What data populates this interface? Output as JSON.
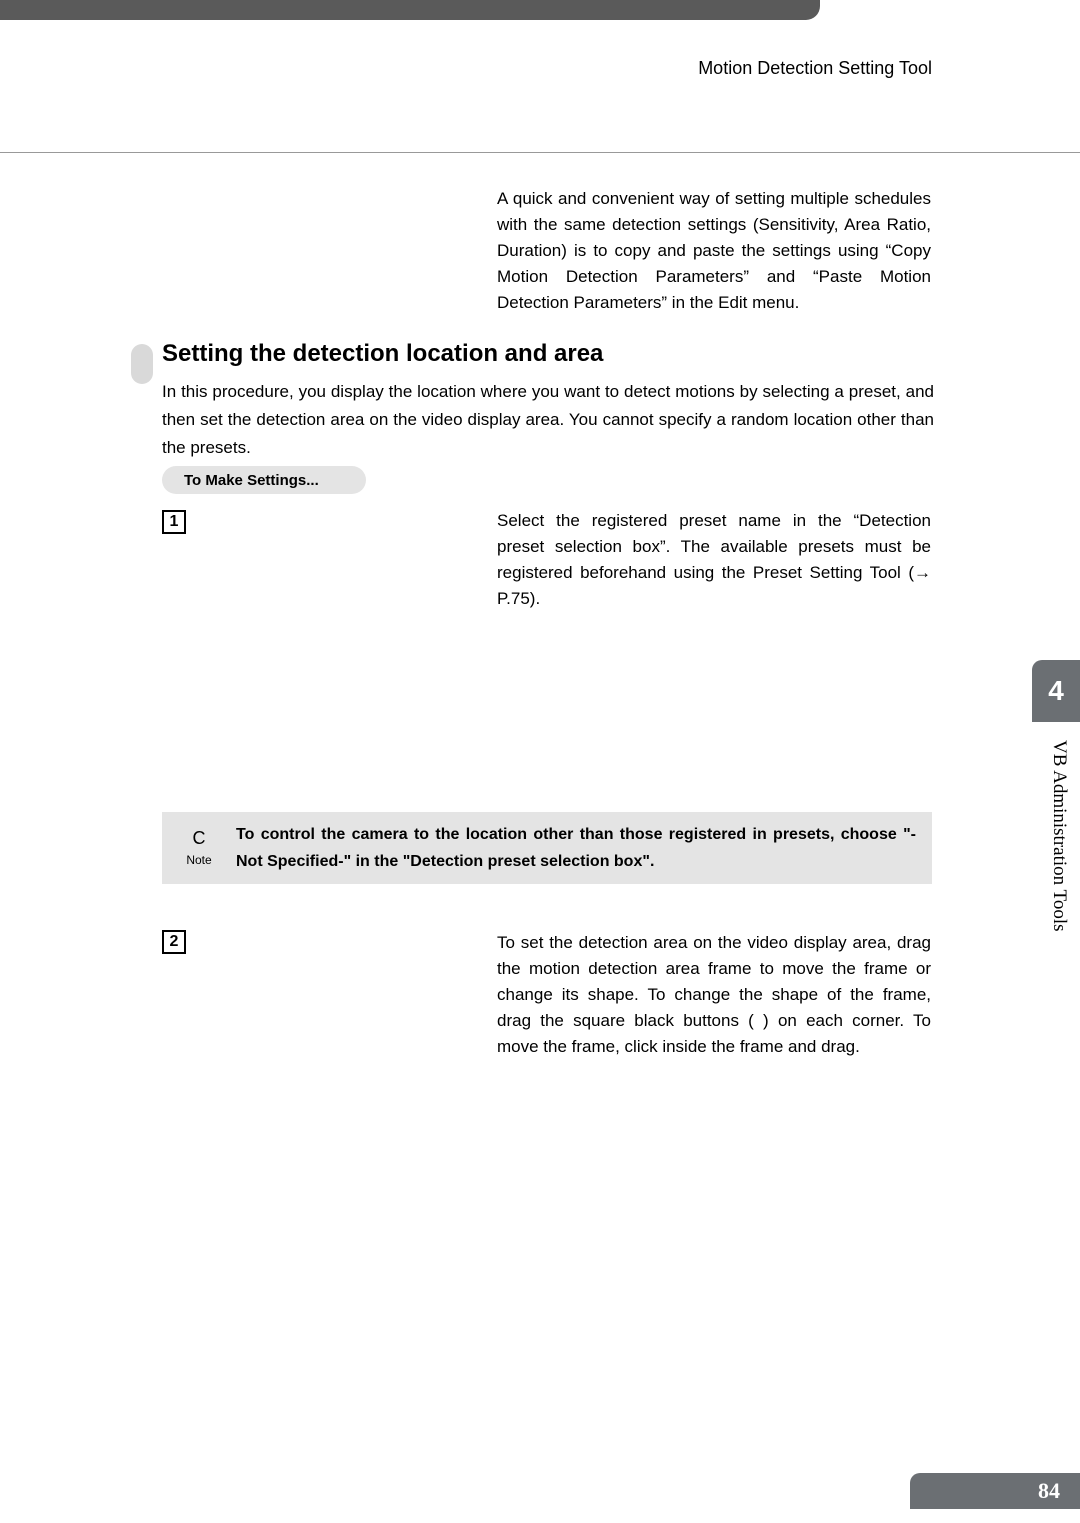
{
  "colors": {
    "top_bar": "#5a5a5a",
    "pill_bg": "#e4e4e4",
    "note_bg": "#e4e4e4",
    "side_bg": "#6b6f73",
    "bullet_bg": "#d9d9d9",
    "rule": "#999999",
    "page_bg": "#ffffff",
    "text": "#000000",
    "side_text": "#ffffff"
  },
  "header": {
    "title": "Motion Detection Setting Tool"
  },
  "intro": {
    "text": "A quick and convenient way of setting multiple schedules with the same detection settings (Sensitivity, Area Ratio, Duration) is to copy and paste the settings using “Copy Motion Detection Parameters” and “Paste Motion Detection Parameters” in the Edit menu."
  },
  "section": {
    "title": "Setting the detection location and area",
    "para": "In this procedure, you display the location where you want to detect motions by selecting a preset, and then set the detection area on the video display area. You cannot specify a random location other than the presets.",
    "pill": "To Make Settings..."
  },
  "steps": [
    {
      "num": "1",
      "text": "Select the registered preset name in the “Detection preset selection box”. The available presets must be registered beforehand using the Preset Setting Tool (→ P.75)."
    },
    {
      "num": "2",
      "text": "To set the detection area on the video display area, drag the motion detection area frame to move the frame or change its shape. To change the shape of the frame, drag the square black buttons (  ) on each corner. To move the frame, click inside the frame and drag."
    }
  ],
  "note": {
    "icon_top": "C",
    "icon_bottom": "Note",
    "text": "To control the camera to the location other than those registered in presets, choose \"-Not Specified-\" in the \"Detection preset selection box\"."
  },
  "side": {
    "chapter": "4",
    "label": "VB Administration Tools"
  },
  "page_number": "84"
}
